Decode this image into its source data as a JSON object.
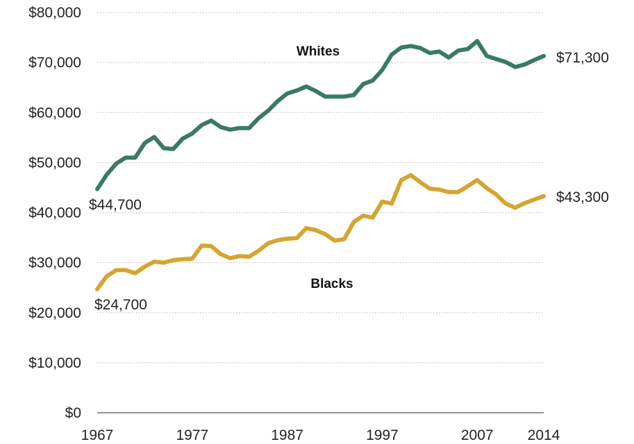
{
  "chart_data": {
    "type": "line",
    "title": "",
    "xlabel": "",
    "ylabel": "",
    "xlim": [
      1967,
      2014
    ],
    "ylim": [
      0,
      80000
    ],
    "y_ticks": [
      "$0",
      "$10,000",
      "$20,000",
      "$30,000",
      "$40,000",
      "$50,000",
      "$60,000",
      "$70,000",
      "$80,000"
    ],
    "y_tick_values": [
      0,
      10000,
      20000,
      30000,
      40000,
      50000,
      60000,
      70000,
      80000
    ],
    "x_ticks": [
      "1967",
      "1977",
      "1987",
      "1997",
      "2007",
      "2014"
    ],
    "x_tick_values": [
      1967,
      1977,
      1987,
      1997,
      2007,
      2014
    ],
    "grid": "horizontal dotted",
    "legend": "none (direct labels)",
    "series": [
      {
        "name": "Whites",
        "color": "#3a7a63",
        "x": [
          1967,
          1968,
          1969,
          1970,
          1971,
          1972,
          1973,
          1974,
          1975,
          1976,
          1977,
          1978,
          1979,
          1980,
          1981,
          1982,
          1983,
          1984,
          1985,
          1986,
          1987,
          1988,
          1989,
          1990,
          1991,
          1992,
          1993,
          1994,
          1995,
          1996,
          1997,
          1998,
          1999,
          2000,
          2001,
          2002,
          2003,
          2004,
          2005,
          2006,
          2007,
          2008,
          2009,
          2010,
          2011,
          2012,
          2013,
          2014
        ],
        "values": [
          44700,
          47600,
          49800,
          51000,
          51000,
          53900,
          55100,
          52900,
          52700,
          54800,
          55800,
          57500,
          58400,
          57100,
          56600,
          56900,
          56900,
          58900,
          60400,
          62300,
          63800,
          64400,
          65200,
          64300,
          63200,
          63200,
          63200,
          63500,
          65700,
          66400,
          68500,
          71600,
          73000,
          73300,
          72900,
          71900,
          72200,
          71000,
          72400,
          72700,
          74300,
          71300,
          70700,
          70100,
          69100,
          69600,
          70500,
          71300
        ],
        "start_label": "$44,700",
        "end_label": "$71,300"
      },
      {
        "name": "Blacks",
        "color": "#d4a531",
        "x": [
          1967,
          1968,
          1969,
          1970,
          1971,
          1972,
          1973,
          1974,
          1975,
          1976,
          1977,
          1978,
          1979,
          1980,
          1981,
          1982,
          1983,
          1984,
          1985,
          1986,
          1987,
          1988,
          1989,
          1990,
          1991,
          1992,
          1993,
          1994,
          1995,
          1996,
          1997,
          1998,
          1999,
          2000,
          2001,
          2002,
          2003,
          2004,
          2005,
          2006,
          2007,
          2008,
          2009,
          2010,
          2011,
          2012,
          2013,
          2014
        ],
        "values": [
          24700,
          27300,
          28500,
          28500,
          27900,
          29200,
          30200,
          30000,
          30500,
          30700,
          30800,
          33400,
          33300,
          31700,
          30900,
          31300,
          31200,
          32400,
          33900,
          34500,
          34800,
          34900,
          36900,
          36500,
          35700,
          34400,
          34700,
          38100,
          39400,
          39000,
          42200,
          41800,
          46500,
          47500,
          46100,
          44800,
          44600,
          44100,
          44100,
          45300,
          46500,
          44900,
          43600,
          41800,
          41000,
          41900,
          42600,
          43300
        ],
        "start_label": "$24,700",
        "end_label": "$43,300"
      }
    ]
  }
}
